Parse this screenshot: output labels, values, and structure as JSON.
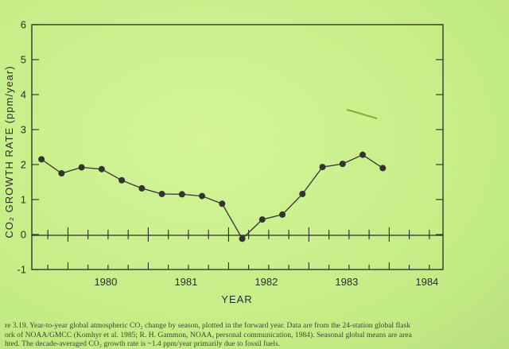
{
  "chart_data": {
    "type": "line",
    "title": "",
    "xlabel": "YEAR",
    "ylabel": "CO₂ GROWTH RATE (ppm/year)",
    "ylim": [
      -1,
      6
    ],
    "xlim": [
      1979.55,
      1984.67
    ],
    "y_ticks": [
      "-1",
      "0",
      "1",
      "2",
      "3",
      "4",
      "5",
      "6"
    ],
    "x_tick_labels": [
      "1980",
      "1981",
      "1982",
      "1983",
      "1984"
    ],
    "grid": false,
    "series": [
      {
        "x": [
          1979.67,
          1979.92,
          1980.17,
          1980.42,
          1980.67,
          1980.92,
          1981.17,
          1981.42,
          1981.67,
          1981.92,
          1982.17,
          1982.42,
          1982.67,
          1982.92,
          1983.17,
          1983.42,
          1983.67,
          1983.92
        ],
        "values": [
          2.15,
          1.75,
          1.92,
          1.87,
          1.55,
          1.32,
          1.16,
          1.15,
          1.1,
          0.88,
          -0.12,
          0.43,
          0.57,
          1.16,
          1.93,
          2.02,
          2.28,
          1.9
        ]
      }
    ]
  },
  "caption": {
    "line1": "re 3.19.  Year-to-year global atmospheric CO₂ change by season, plotted in the forward year.  Data are from the 24-station global flask",
    "line2": "ork of NOAA/GMCC (Komhyr et al. 1985; R. H. Gammon, NOAA, personal communication, 1984).  Seasonal global means are area",
    "line3": "hted.  The decade-averaged CO₂ growth rate is ~1.4 ppm/year primarily due to fossil fuels."
  }
}
